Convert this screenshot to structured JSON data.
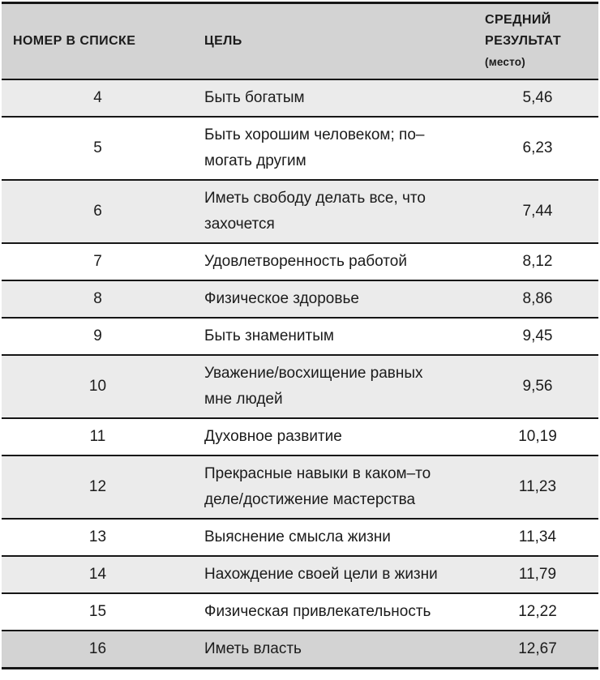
{
  "table": {
    "header": {
      "col_number": "НОМЕР В СПИСКЕ",
      "col_goal": "ЦЕЛЬ",
      "col_result_line1": "СРЕДНИЙ",
      "col_result_line2": "РЕЗУЛЬТАТ",
      "col_result_sub": "(место)"
    },
    "rows": [
      {
        "number": "4",
        "goal_lines": [
          "Быть богатым"
        ],
        "result": "5,46"
      },
      {
        "number": "5",
        "goal_lines": [
          "Быть хорошим человеком; по–",
          "могать другим"
        ],
        "result": "6,23"
      },
      {
        "number": "6",
        "goal_lines": [
          "Иметь свободу делать все, что",
          "захочется"
        ],
        "result": "7,44"
      },
      {
        "number": "7",
        "goal_lines": [
          "Удовлетворенность работой"
        ],
        "result": "8,12"
      },
      {
        "number": "8",
        "goal_lines": [
          "Физическое здоровье"
        ],
        "result": "8,86"
      },
      {
        "number": "9",
        "goal_lines": [
          "Быть знаменитым"
        ],
        "result": "9,45"
      },
      {
        "number": "10",
        "goal_lines": [
          "Уважение/восхищение равных",
          "мне людей"
        ],
        "result": "9,56"
      },
      {
        "number": "11",
        "goal_lines": [
          "Духовное развитие"
        ],
        "result": "10,19"
      },
      {
        "number": "12",
        "goal_lines": [
          "Прекрасные навыки в каком–то",
          "деле/достижение мастерства"
        ],
        "result": "11,23"
      },
      {
        "number": "13",
        "goal_lines": [
          "Выяснение смысла жизни"
        ],
        "result": "11,34"
      },
      {
        "number": "14",
        "goal_lines": [
          "Нахождение своей цели в жизни"
        ],
        "result": "11,79"
      },
      {
        "number": "15",
        "goal_lines": [
          "Физическая привлекательность"
        ],
        "result": "12,22"
      },
      {
        "number": "16",
        "goal_lines": [
          "Иметь власть"
        ],
        "result": "12,67",
        "highlight": true
      }
    ]
  },
  "colors": {
    "header_bg": "#d3d3d3",
    "row_alt_bg": "#ebebeb",
    "row_bg": "#ffffff",
    "highlight_row_bg": "#d3d3d3",
    "border": "#161616",
    "text": "#1b1b1b",
    "page_bg": "#ffffff"
  }
}
